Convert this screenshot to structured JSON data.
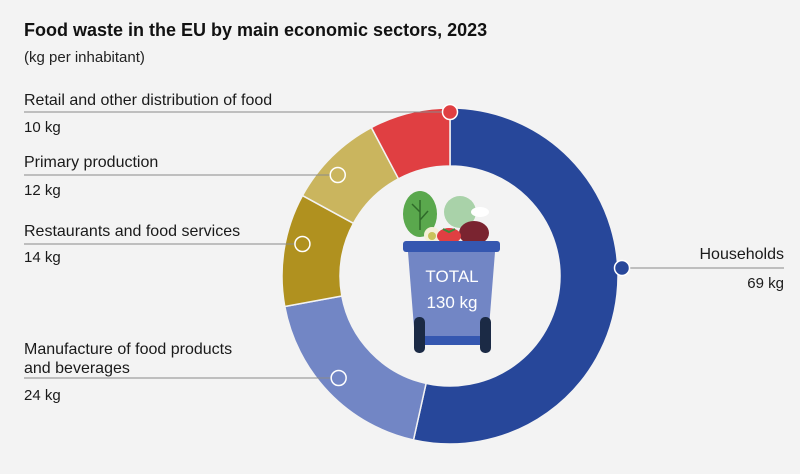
{
  "title": "Food waste in the EU by main economic sectors, 2023",
  "subtitle": "(kg per inhabitant)",
  "chart_data": {
    "type": "pie",
    "title": "Food waste in the EU by main economic sectors, 2023",
    "subtitle": "(kg per inhabitant)",
    "unit": "kg",
    "total_label": "TOTAL",
    "total_value": "130 kg",
    "slices": [
      {
        "label": "Households",
        "value": 69,
        "value_label": "69 kg",
        "color": "#27479a"
      },
      {
        "label": "Manufacture of food products and beverages",
        "value": 24,
        "value_label": "24 kg",
        "color": "#7286c5"
      },
      {
        "label": "Restaurants and food services",
        "value": 14,
        "value_label": "14 kg",
        "color": "#b0911f"
      },
      {
        "label": "Primary production",
        "value": 12,
        "value_label": "12 kg",
        "color": "#cab55e"
      },
      {
        "label": "Retail and other distribution of food",
        "value": 10,
        "value_label": "10 kg",
        "color": "#e03f42"
      }
    ]
  }
}
